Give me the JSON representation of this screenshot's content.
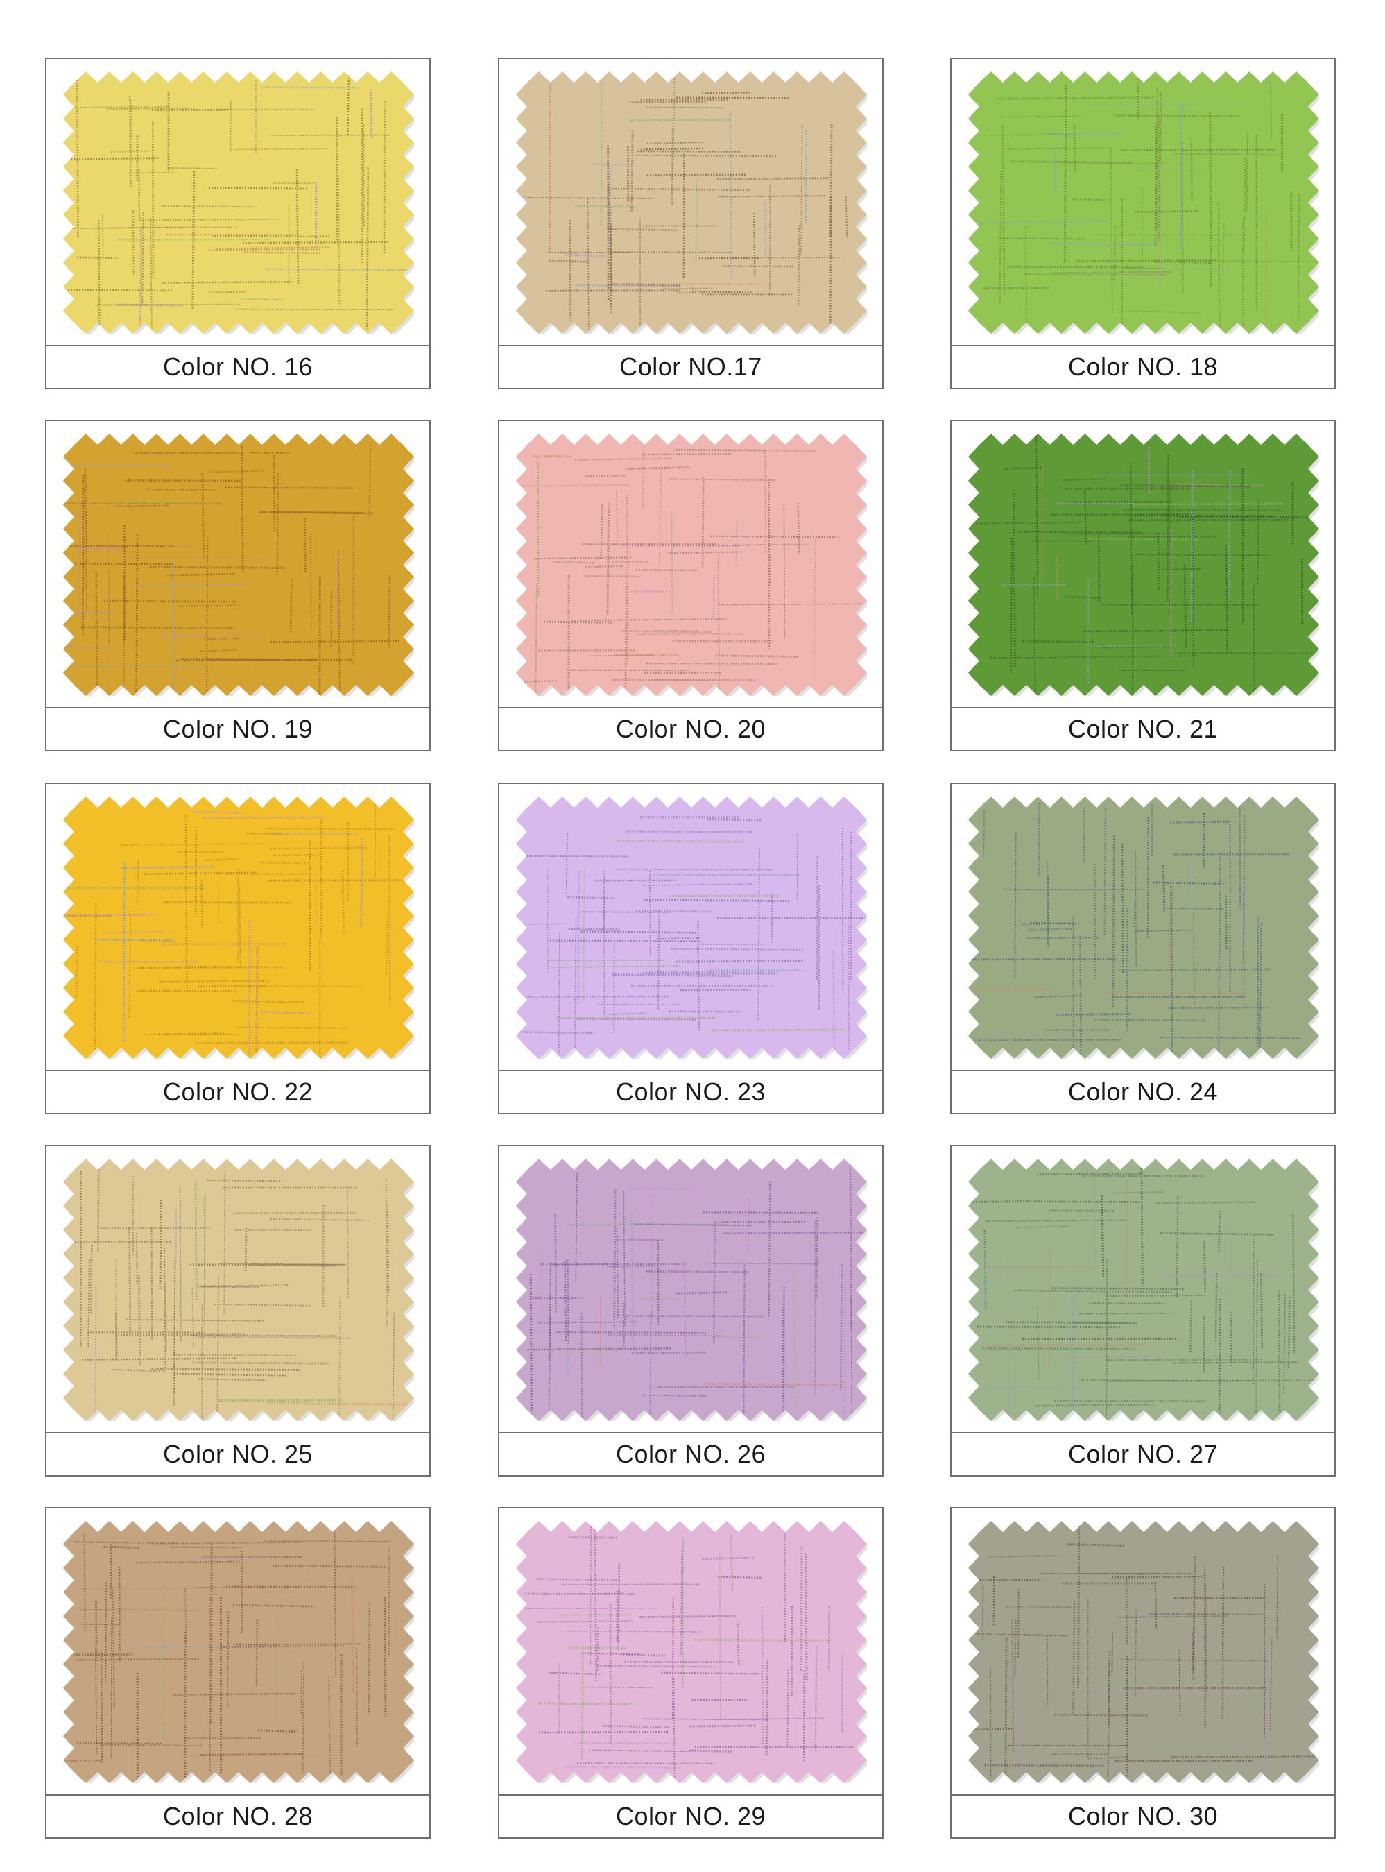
{
  "swatches": [
    {
      "label": "Color NO. 16",
      "color": "#ebd86a",
      "line_color": "#9c8140"
    },
    {
      "label": "Color NO.17",
      "color": "#d7c29c",
      "line_color": "#876744"
    },
    {
      "label": "Color NO. 18",
      "color": "#92c552",
      "line_color": "#6f8b3e"
    },
    {
      "label": "Color NO. 19",
      "color": "#d4a22f",
      "line_color": "#8d6428"
    },
    {
      "label": "Color NO. 20",
      "color": "#f0b6b2",
      "line_color": "#a07b6c"
    },
    {
      "label": "Color NO. 21",
      "color": "#5e9a36",
      "line_color": "#3a5a2c"
    },
    {
      "label": "Color NO. 22",
      "color": "#f3bf29",
      "line_color": "#b9892b"
    },
    {
      "label": "Color NO. 23",
      "color": "#d8b9ee",
      "line_color": "#8a72b0"
    },
    {
      "label": "Color NO. 24",
      "color": "#9aab84",
      "line_color": "#56677a"
    },
    {
      "label": "Color NO. 25",
      "color": "#ddc996",
      "line_color": "#8f7656"
    },
    {
      "label": "Color NO. 26",
      "color": "#c7a7cc",
      "line_color": "#7d5e95"
    },
    {
      "label": "Color NO. 27",
      "color": "#9db38c",
      "line_color": "#5c6e56"
    },
    {
      "label": "Color NO. 28",
      "color": "#c5a57f",
      "line_color": "#8a5c3e"
    },
    {
      "label": "Color NO. 29",
      "color": "#e4b6d8",
      "line_color": "#8f6ba5"
    },
    {
      "label": "Color NO. 30",
      "color": "#a3a28e",
      "line_color": "#6a5a40"
    }
  ]
}
